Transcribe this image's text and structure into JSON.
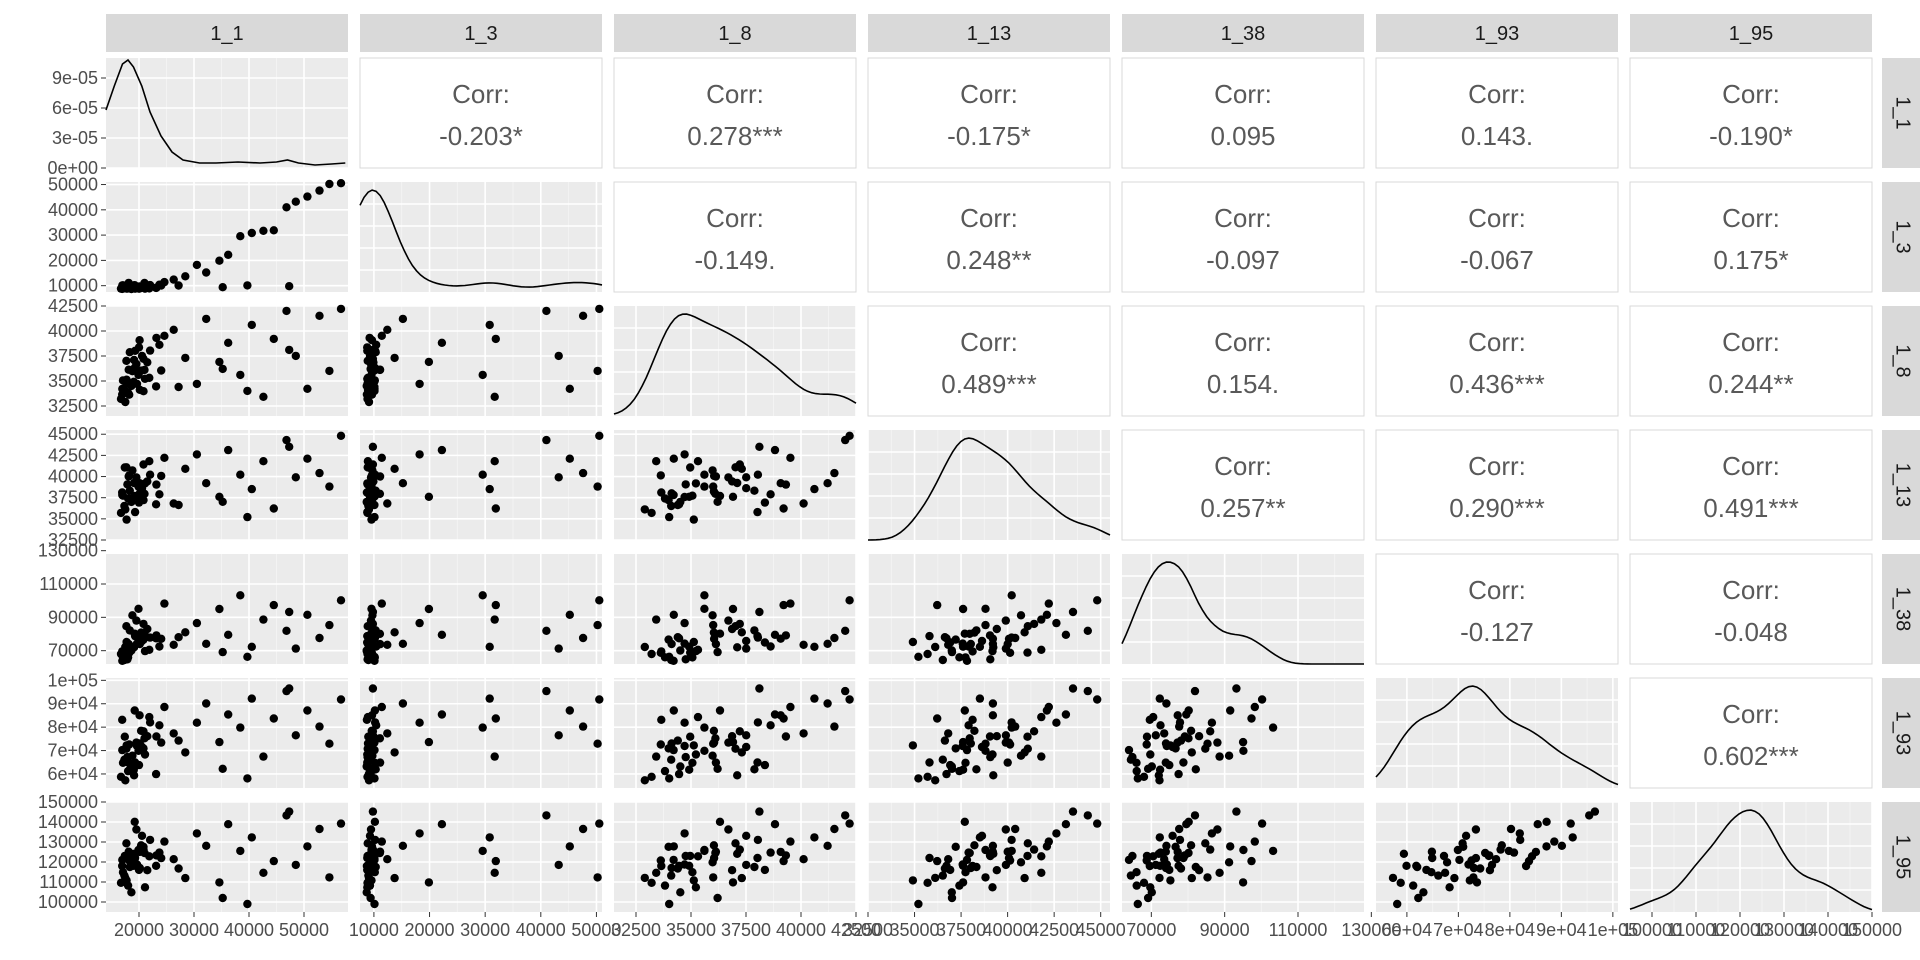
{
  "chart_data": {
    "type": "scatter",
    "variables": [
      "1_1",
      "1_3",
      "1_8",
      "1_13",
      "1_38",
      "1_93",
      "1_95"
    ],
    "corr_title": "Corr:",
    "correlations": {
      "1_1|1_3": "-0.203*",
      "1_1|1_8": "0.278***",
      "1_1|1_13": "-0.175*",
      "1_1|1_38": "0.095",
      "1_1|1_93": "0.143.",
      "1_1|1_95": "-0.190*",
      "1_3|1_8": "-0.149.",
      "1_3|1_13": "0.248**",
      "1_3|1_38": "-0.097",
      "1_3|1_93": "-0.067",
      "1_3|1_95": "0.175*",
      "1_8|1_13": "0.489***",
      "1_8|1_38": "0.154.",
      "1_8|1_93": "0.436***",
      "1_8|1_95": "0.244**",
      "1_13|1_38": "0.257**",
      "1_13|1_93": "0.290***",
      "1_13|1_95": "0.491***",
      "1_38|1_93": "-0.127",
      "1_38|1_95": "-0.048",
      "1_93|1_95": "0.602***"
    },
    "ranges": {
      "1_1": [
        14000,
        58000
      ],
      "1_3": [
        7500,
        51000
      ],
      "1_8": [
        31500,
        42500
      ],
      "1_13": [
        32500,
        45500
      ],
      "1_38": [
        62000,
        128000
      ],
      "1_93": [
        54000,
        101000
      ],
      "1_95": [
        95000,
        150000
      ]
    },
    "y_ticks": {
      "1_1": [
        "9e-05",
        "6e-05",
        "3e-05",
        "0e+00"
      ],
      "1_3": [
        "50000",
        "40000",
        "30000",
        "20000",
        "10000"
      ],
      "1_8": [
        "42500",
        "40000",
        "37500",
        "35000",
        "32500"
      ],
      "1_13": [
        "45000",
        "42500",
        "40000",
        "37500",
        "35000",
        "32500"
      ],
      "1_38": [
        "130000",
        "110000",
        "90000",
        "70000"
      ],
      "1_93": [
        "1e+05",
        "9e+04",
        "8e+04",
        "7e+04",
        "6e+04"
      ],
      "1_95": [
        "150000",
        "140000",
        "130000",
        "120000",
        "110000",
        "100000"
      ]
    },
    "x_ticks": {
      "1_1": [
        "20000",
        "30000",
        "40000",
        "50000"
      ],
      "1_3": [
        "10000",
        "20000",
        "30000",
        "40000",
        "50000"
      ],
      "1_8": [
        "32500",
        "35000",
        "37500",
        "40000",
        "42500"
      ],
      "1_13": [
        "32500",
        "35000",
        "37500",
        "40000",
        "42500",
        "45000"
      ],
      "1_38": [
        "70000",
        "90000",
        "110000",
        "130000"
      ],
      "1_93": [
        "6e+04",
        "7e+04",
        "8e+04",
        "9e+04",
        "1e+05"
      ],
      "1_95": [
        "100000",
        "110000",
        "120000",
        "130000",
        "140000",
        "150000"
      ]
    },
    "density_y_range": [
      0,
      0.00011
    ],
    "density_1_1": [
      [
        14000,
        5.8e-05
      ],
      [
        15500,
        8.2e-05
      ],
      [
        17000,
        0.000104
      ],
      [
        18000,
        0.000108
      ],
      [
        19000,
        0.000101
      ],
      [
        20500,
        8.2e-05
      ],
      [
        22000,
        5.6e-05
      ],
      [
        24000,
        3.2e-05
      ],
      [
        26000,
        1.6e-05
      ],
      [
        28000,
        8e-06
      ],
      [
        31000,
        5e-06
      ],
      [
        34000,
        5e-06
      ],
      [
        38000,
        6e-06
      ],
      [
        42000,
        5e-06
      ],
      [
        45000,
        6e-06
      ],
      [
        47000,
        8e-06
      ],
      [
        49000,
        5e-06
      ],
      [
        52000,
        3e-06
      ],
      [
        55000,
        4e-06
      ],
      [
        57500,
        5e-06
      ]
    ],
    "grid_breaks": {
      "1_1": [
        20000,
        30000,
        40000,
        50000
      ],
      "1_3": [
        10000,
        20000,
        30000,
        40000,
        50000
      ],
      "1_8": [
        32500,
        35000,
        37500,
        40000,
        42500
      ],
      "1_13": [
        32500,
        35000,
        37500,
        40000,
        42500,
        45000
      ],
      "1_38": [
        70000,
        90000,
        110000,
        130000
      ],
      "1_93": [
        60000,
        70000,
        80000,
        90000,
        100000
      ],
      "1_95": [
        100000,
        110000,
        120000,
        130000,
        140000,
        150000
      ]
    },
    "density_breaks": [
      0,
      3e-05,
      6e-05,
      9e-05
    ],
    "points": [
      [
        20383,
        9611,
        36043,
        38216,
        80838,
        78432,
        128359
      ],
      [
        18131,
        11117,
        36130,
        40003,
        73934,
        64854,
        125162
      ],
      [
        20007,
        8788,
        38359,
        36915,
        74891,
        63787,
        116059
      ],
      [
        16949,
        8744,
        33649,
        38119,
        69569,
        83154,
        118012
      ],
      [
        23109,
        9106,
        34458,
        36719,
        77432,
        59924,
        118123
      ],
      [
        17895,
        8861,
        34761,
        39071,
        64846,
        67210,
        123022
      ],
      [
        17708,
        8881,
        37023,
        41086,
        84707,
        70811,
        129342
      ],
      [
        19640,
        9357,
        34708,
        37585,
        74210,
        71962,
        118765
      ],
      [
        27201,
        10080,
        34402,
        36633,
        78082,
        74245,
        116738
      ],
      [
        17751,
        9567,
        35126,
        34911,
        75193,
        72212,
        110818
      ],
      [
        21008,
        11073,
        36111,
        37964,
        80147,
        75216,
        124513
      ],
      [
        17418,
        8989,
        34963,
        41070,
        68812,
        75911,
        123059
      ],
      [
        19101,
        9436,
        37101,
        39232,
        72049,
        59416,
        124117
      ],
      [
        17089,
        10168,
        35062,
        37736,
        65946,
        64761,
        114916
      ],
      [
        18226,
        9632,
        33627,
        40136,
        68728,
        72567,
        120744
      ],
      [
        19051,
        10058,
        34919,
        37608,
        72402,
        61828,
        118113
      ],
      [
        19282,
        8806,
        38025,
        35802,
        78745,
        64916,
        121993
      ],
      [
        21084,
        8809,
        35224,
        39188,
        69711,
        68302,
        107342
      ],
      [
        24045,
        10086,
        36048,
        40072,
        77129,
        73405,
        121941
      ],
      [
        16966,
        10110,
        34211,
        37818,
        63910,
        70201,
        121071
      ],
      [
        23162,
        9219,
        39312,
        39052,
        79133,
        76004,
        123319
      ],
      [
        20104,
        9662,
        39076,
        39209,
        77201,
        85055,
        125039
      ],
      [
        19219,
        10183,
        36318,
        37701,
        80201,
        87128,
        140112
      ],
      [
        20154,
        8939,
        34120,
        38021,
        74005,
        73011,
        117024
      ],
      [
        18013,
        9304,
        33820,
        37409,
        66022,
        61224,
        108218
      ],
      [
        20812,
        9811,
        37220,
        41422,
        86044,
        78206,
        126211
      ],
      [
        17502,
        9120,
        32901,
        36112,
        72230,
        57304,
        112040
      ],
      [
        19903,
        9570,
        35611,
        38810,
        95120,
        69908,
        126000
      ],
      [
        22015,
        10212,
        38040,
        40212,
        77812,
        82014,
        131032
      ],
      [
        18620,
        8702,
        34512,
        37003,
        70120,
        63201,
        104830
      ],
      [
        21503,
        9908,
        36870,
        39420,
        83014,
        76120,
        115903
      ],
      [
        16720,
        8844,
        33210,
        35704,
        68011,
        58803,
        109602
      ],
      [
        20540,
        9306,
        37510,
        38622,
        75802,
        71503,
        133120
      ],
      [
        18804,
        9720,
        35980,
        40720,
        91203,
        67810,
        119840
      ],
      [
        23701,
        10405,
        38620,
        37902,
        72510,
        80802,
        124710
      ],
      [
        17340,
        9013,
        34101,
        36520,
        64420,
        66101,
        113210
      ],
      [
        19520,
        9480,
        36702,
        39902,
        88031,
        73401,
        136240
      ],
      [
        21870,
        8917,
        35320,
        41810,
        70520,
        84300,
        122850
      ],
      [
        18330,
        10320,
        37880,
        38321,
        82140,
        62003,
        117520
      ],
      [
        20820,
        9655,
        33980,
        37210,
        76630,
        70930,
        127610
      ],
      [
        24620,
        11420,
        39520,
        42210,
        98210,
        88620,
        130220
      ],
      [
        26310,
        12410,
        40120,
        36810,
        73510,
        77320,
        121410
      ],
      [
        28420,
        13720,
        37310,
        40910,
        81030,
        69230,
        111930
      ],
      [
        30520,
        18210,
        34710,
        42620,
        86510,
        81920,
        134310
      ],
      [
        32210,
        15220,
        41210,
        39210,
        74120,
        90110,
        128120
      ],
      [
        34620,
        19880,
        36910,
        37610,
        95020,
        73620,
        109820
      ],
      [
        36210,
        22230,
        38820,
        43130,
        79530,
        85410,
        138910
      ],
      [
        38410,
        29550,
        35610,
        40220,
        103210,
        79810,
        125530
      ],
      [
        40510,
        30820,
        40610,
        38510,
        72310,
        92210,
        132310
      ],
      [
        42610,
        31710,
        33420,
        41810,
        88620,
        67420,
        114620
      ],
      [
        44510,
        31910,
        39210,
        36220,
        97310,
        83710,
        120430
      ],
      [
        46810,
        41010,
        42010,
        44310,
        81920,
        95410,
        143320
      ],
      [
        48510,
        43210,
        37510,
        39910,
        71220,
        76530,
        118530
      ],
      [
        50620,
        45210,
        34220,
        42110,
        91520,
        87110,
        127820
      ],
      [
        52810,
        47610,
        41520,
        40410,
        77610,
        80220,
        136510
      ],
      [
        54620,
        50210,
        36010,
        38810,
        85310,
        72910,
        112310
      ],
      [
        56720,
        50510,
        42210,
        44810,
        100210,
        91810,
        139210
      ],
      [
        35210,
        9410,
        36210,
        37010,
        69110,
        62210,
        102010
      ],
      [
        39710,
        10110,
        34010,
        35210,
        66310,
        58110,
        99020
      ],
      [
        47310,
        9810,
        38110,
        43510,
        93210,
        96510,
        145210
      ]
    ]
  }
}
